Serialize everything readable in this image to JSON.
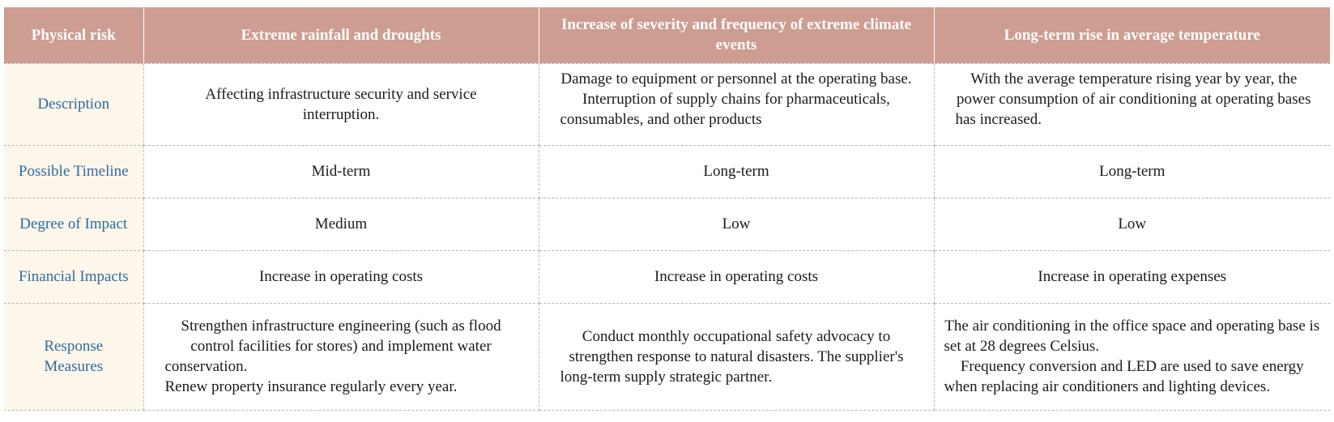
{
  "header": {
    "col0": "Physical risk",
    "col1": "Extreme rainfall and droughts",
    "col2": "Increase of severity and frequency of extreme climate events",
    "col3": "Long-term rise in average temperature"
  },
  "rows": {
    "description": {
      "label": "Description",
      "c1": "Affecting infrastructure security and service interruption.",
      "c2": "Damage to equipment or personnel at the operating base. Interruption of supply chains for pharmaceuticals, consumables, and other products",
      "c3": "With the average temperature rising year by year, the power consumption of air conditioning at operating bases has increased."
    },
    "timeline": {
      "label": "Possible Timeline",
      "c1": "Mid-term",
      "c2": "Long-term",
      "c3": "Long-term"
    },
    "impact": {
      "label": "Degree of Impact",
      "c1": "Medium",
      "c2": "Low",
      "c3": "Low"
    },
    "financial": {
      "label": "Financial Impacts",
      "c1": "Increase in operating costs",
      "c2": "Increase in operating costs",
      "c3": "Increase in operating expenses"
    },
    "response": {
      "label": "Response Measures",
      "c1_p1": "Strengthen infrastructure engineering (such as flood control facilities for stores) and implement water conservation.",
      "c1_p2": "Renew property insurance regularly every year.",
      "c2": "Conduct monthly occupational safety advocacy to strengthen response to natural disasters. The supplier's long-term supply strategic partner.",
      "c3_p1": "The air conditioning in the office space and operating base is set at 28 degrees Celsius.",
      "c3_p2": "Frequency conversion and LED are used to save energy when replacing air conditioners and lighting devices."
    }
  }
}
